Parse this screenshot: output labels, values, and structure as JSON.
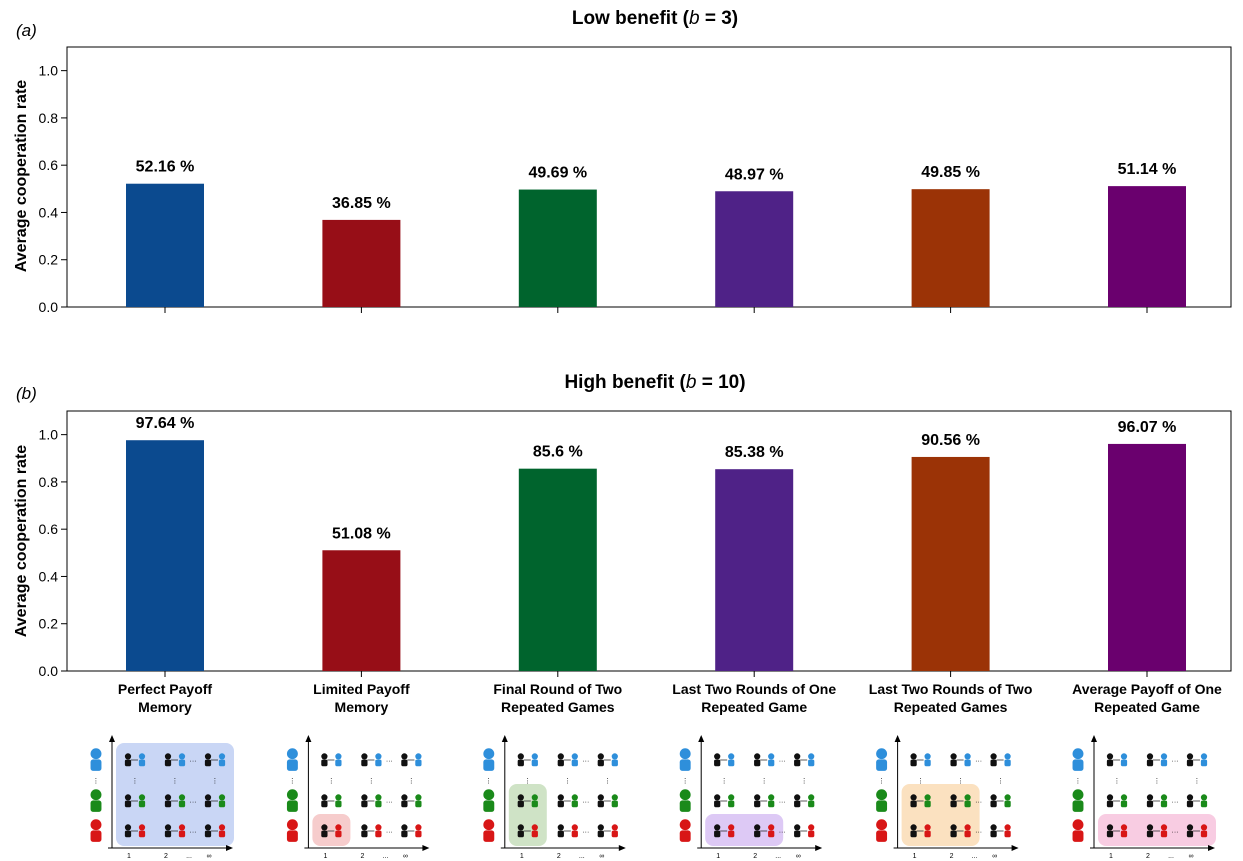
{
  "chart_data": [
    {
      "type": "bar",
      "panel_label": "(a)",
      "title": "Low benefit (b = 3)",
      "title_parts": {
        "prefix": "Low benefit (",
        "var": "b",
        "rest": " = 3)"
      },
      "ylabel": "Average cooperation rate",
      "xlabel": "",
      "ylim": [
        0,
        1.1
      ],
      "yticks": [
        "0.0",
        "0.2",
        "0.4",
        "0.6",
        "0.8",
        "1.0"
      ],
      "grid": false,
      "categories": [
        "Perfect Payoff Memory",
        "Limited Payoff Memory",
        "Final Round of Two Repeated Games",
        "Last Two Rounds of One Repeated Game",
        "Last Two Rounds of Two Repeated Games",
        "Average Payoff of One Repeated Game"
      ],
      "values": [
        0.5216,
        0.3685,
        0.4969,
        0.4897,
        0.4985,
        0.5114
      ],
      "value_labels": [
        "52.16 %",
        "36.85 %",
        "49.69 %",
        "48.97 %",
        "49.85 %",
        "51.14 %"
      ],
      "colors": [
        "#0b4a8f",
        "#970e17",
        "#00642d",
        "#4f2287",
        "#9b3306",
        "#6a006e"
      ]
    },
    {
      "type": "bar",
      "panel_label": "(b)",
      "title": "High benefit (b = 10)",
      "title_parts": {
        "prefix": "High benefit (",
        "var": "b",
        "rest": " = 10)"
      },
      "ylabel": "Average cooperation rate",
      "xlabel": "",
      "ylim": [
        0,
        1.1
      ],
      "yticks": [
        "0.0",
        "0.2",
        "0.4",
        "0.6",
        "0.8",
        "1.0"
      ],
      "grid": false,
      "categories": [
        "Perfect Payoff Memory",
        "Limited Payoff Memory",
        "Final Round of Two Repeated Games",
        "Last Two Rounds of One Repeated Game",
        "Last Two Rounds of Two Repeated Games",
        "Average Payoff of One Repeated Game"
      ],
      "category_lines": [
        [
          "Perfect Payoff",
          "Memory"
        ],
        [
          "Limited Payoff",
          "Memory"
        ],
        [
          "Final Round of Two",
          "Repeated Games"
        ],
        [
          "Last Two Rounds of One",
          "Repeated Game"
        ],
        [
          "Last Two Rounds of Two",
          "Repeated Games"
        ],
        [
          "Average Payoff of One",
          "Repeated Game"
        ]
      ],
      "values": [
        0.9764,
        0.5108,
        0.856,
        0.8538,
        0.9056,
        0.9607
      ],
      "value_labels": [
        "97.64 %",
        "51.08 %",
        "85.6 %",
        "85.38 %",
        "90.56 %",
        "96.07 %"
      ],
      "colors": [
        "#0b4a8f",
        "#970e17",
        "#00642d",
        "#4f2287",
        "#9b3306",
        "#6a006e"
      ]
    }
  ],
  "schematics": {
    "x_ticks": [
      "1",
      "2",
      "...",
      "∞"
    ],
    "player_colors": [
      "#2e8fdb",
      "#1a8a1a",
      "#d81616"
    ],
    "highlights": [
      {
        "name": "all-rounds-all-partners",
        "color": "#c9d6f5",
        "rows": [
          0,
          2
        ],
        "cols": [
          0,
          2
        ]
      },
      {
        "name": "first-round-last-partner",
        "color": "#f6cccc",
        "rows": [
          2,
          2
        ],
        "cols": [
          0,
          0
        ]
      },
      {
        "name": "first-round-two-partners",
        "color": "#cfe3c6",
        "rows": [
          1,
          2
        ],
        "cols": [
          0,
          0
        ]
      },
      {
        "name": "two-rounds-last-partner",
        "color": "#ddc9f5",
        "rows": [
          2,
          2
        ],
        "cols": [
          0,
          1
        ]
      },
      {
        "name": "two-rounds-two-partners",
        "color": "#fbe1c0",
        "rows": [
          1,
          2
        ],
        "cols": [
          0,
          1
        ]
      },
      {
        "name": "all-rounds-last-partner",
        "color": "#f8cce2",
        "rows": [
          2,
          2
        ],
        "cols": [
          0,
          2
        ]
      }
    ]
  }
}
